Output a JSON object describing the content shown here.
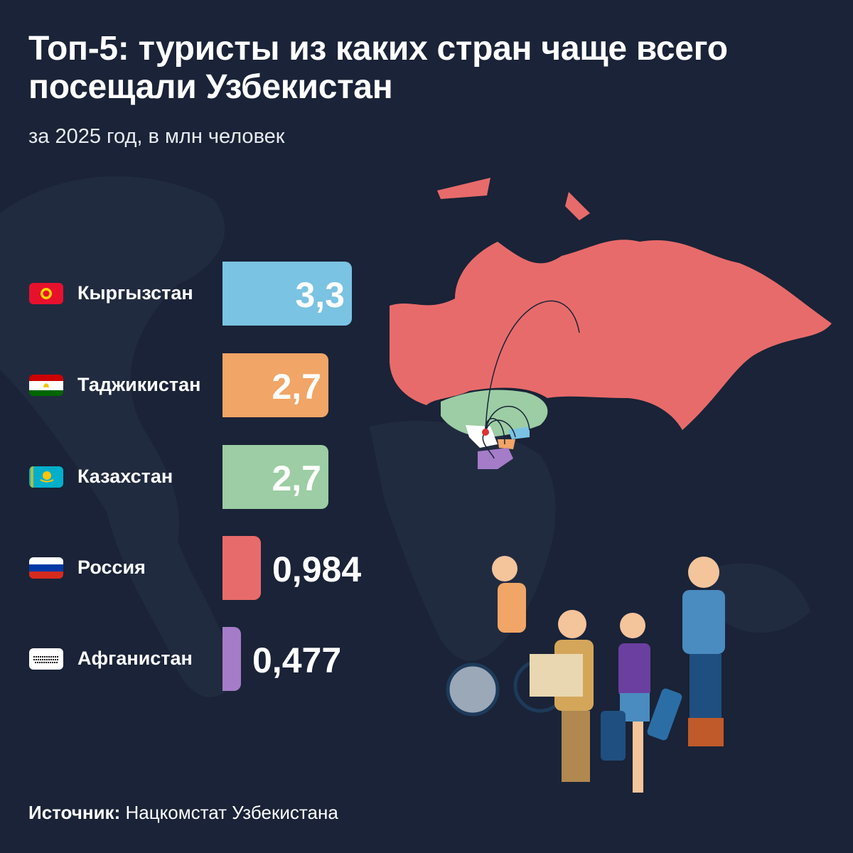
{
  "title": "Топ-5: туристы из каких стран чаще всего посещали Узбекистан",
  "subtitle": "за 2025 год, в млн человек",
  "source": {
    "label": "Источник:",
    "text": "Нацкомстат Узбекистана"
  },
  "chart_data": {
    "type": "bar",
    "orientation": "horizontal",
    "title": "Топ-5: туристы из каких стран чаще всего посещали Узбекистан",
    "subtitle": "за 2025 год, в млн человек",
    "categories": [
      "Кыргызстан",
      "Таджикистан",
      "Казахстан",
      "Россия",
      "Афганистан"
    ],
    "values": [
      3.3,
      2.7,
      2.7,
      0.984,
      0.477
    ],
    "labels": [
      "3,3",
      "2,7",
      "2,7",
      "0,984",
      "0,477"
    ],
    "colors": [
      "#7bc3e3",
      "#f1a566",
      "#9ccda4",
      "#e86b6b",
      "#a57cc8"
    ],
    "flags": [
      "kyrgyzstan-flag",
      "tajikistan-flag",
      "kazakhstan-flag",
      "russia-flag",
      "afghanistan-flag"
    ]
  },
  "colors": {
    "background": "#1a2337",
    "text": "#ffffff"
  }
}
